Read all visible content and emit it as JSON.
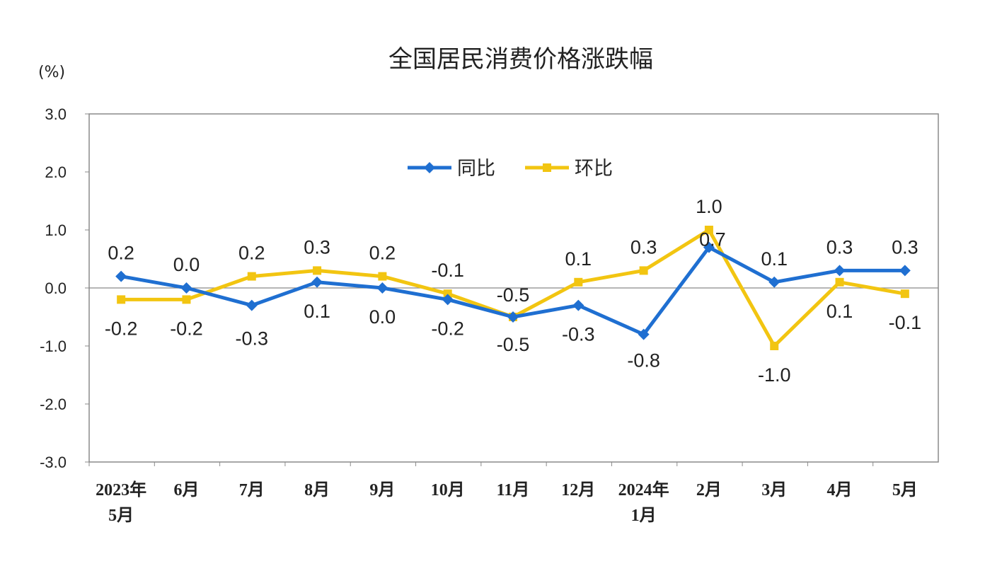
{
  "chart_data": {
    "type": "line",
    "title": "全国居民消费价格涨跌幅",
    "unit_label": "(%)",
    "xlabel": "",
    "ylabel": "",
    "ylim": [
      -3.0,
      3.0
    ],
    "y_ticks": [
      "3.0",
      "2.0",
      "1.0",
      "0.0",
      "-1.0",
      "-2.0",
      "-3.0"
    ],
    "grid": false,
    "legend_position": "top-center",
    "categories": [
      [
        "2023年",
        "5月"
      ],
      [
        "6月"
      ],
      [
        "7月"
      ],
      [
        "8月"
      ],
      [
        "9月"
      ],
      [
        "10月"
      ],
      [
        "11月"
      ],
      [
        "12月"
      ],
      [
        "2024年",
        "1月"
      ],
      [
        "2月"
      ],
      [
        "3月"
      ],
      [
        "4月"
      ],
      [
        "5月"
      ]
    ],
    "series": [
      {
        "name": "同比",
        "color": "#1f6fd1",
        "marker": "diamond",
        "values": [
          0.2,
          0.0,
          -0.3,
          0.1,
          0.0,
          -0.2,
          -0.5,
          -0.3,
          -0.8,
          0.7,
          0.1,
          0.3,
          0.3
        ],
        "labels": [
          "0.2",
          "0.0",
          "-0.3",
          "0.1",
          "0.0",
          "-0.2",
          "-0.5",
          "-0.3",
          "-0.8",
          "0.7",
          "0.1",
          "0.3",
          "0.3"
        ]
      },
      {
        "name": "环比",
        "color": "#f2c511",
        "marker": "square",
        "values": [
          -0.2,
          -0.2,
          0.2,
          0.3,
          0.2,
          -0.1,
          -0.5,
          0.1,
          0.3,
          1.0,
          -1.0,
          0.1,
          -0.1
        ],
        "labels": [
          "-0.2",
          "-0.2",
          "0.2",
          "0.3",
          "0.2",
          "-0.1",
          "-0.5",
          "0.1",
          "0.3",
          "1.0",
          "-1.0",
          "0.1",
          "-0.1"
        ]
      }
    ]
  }
}
